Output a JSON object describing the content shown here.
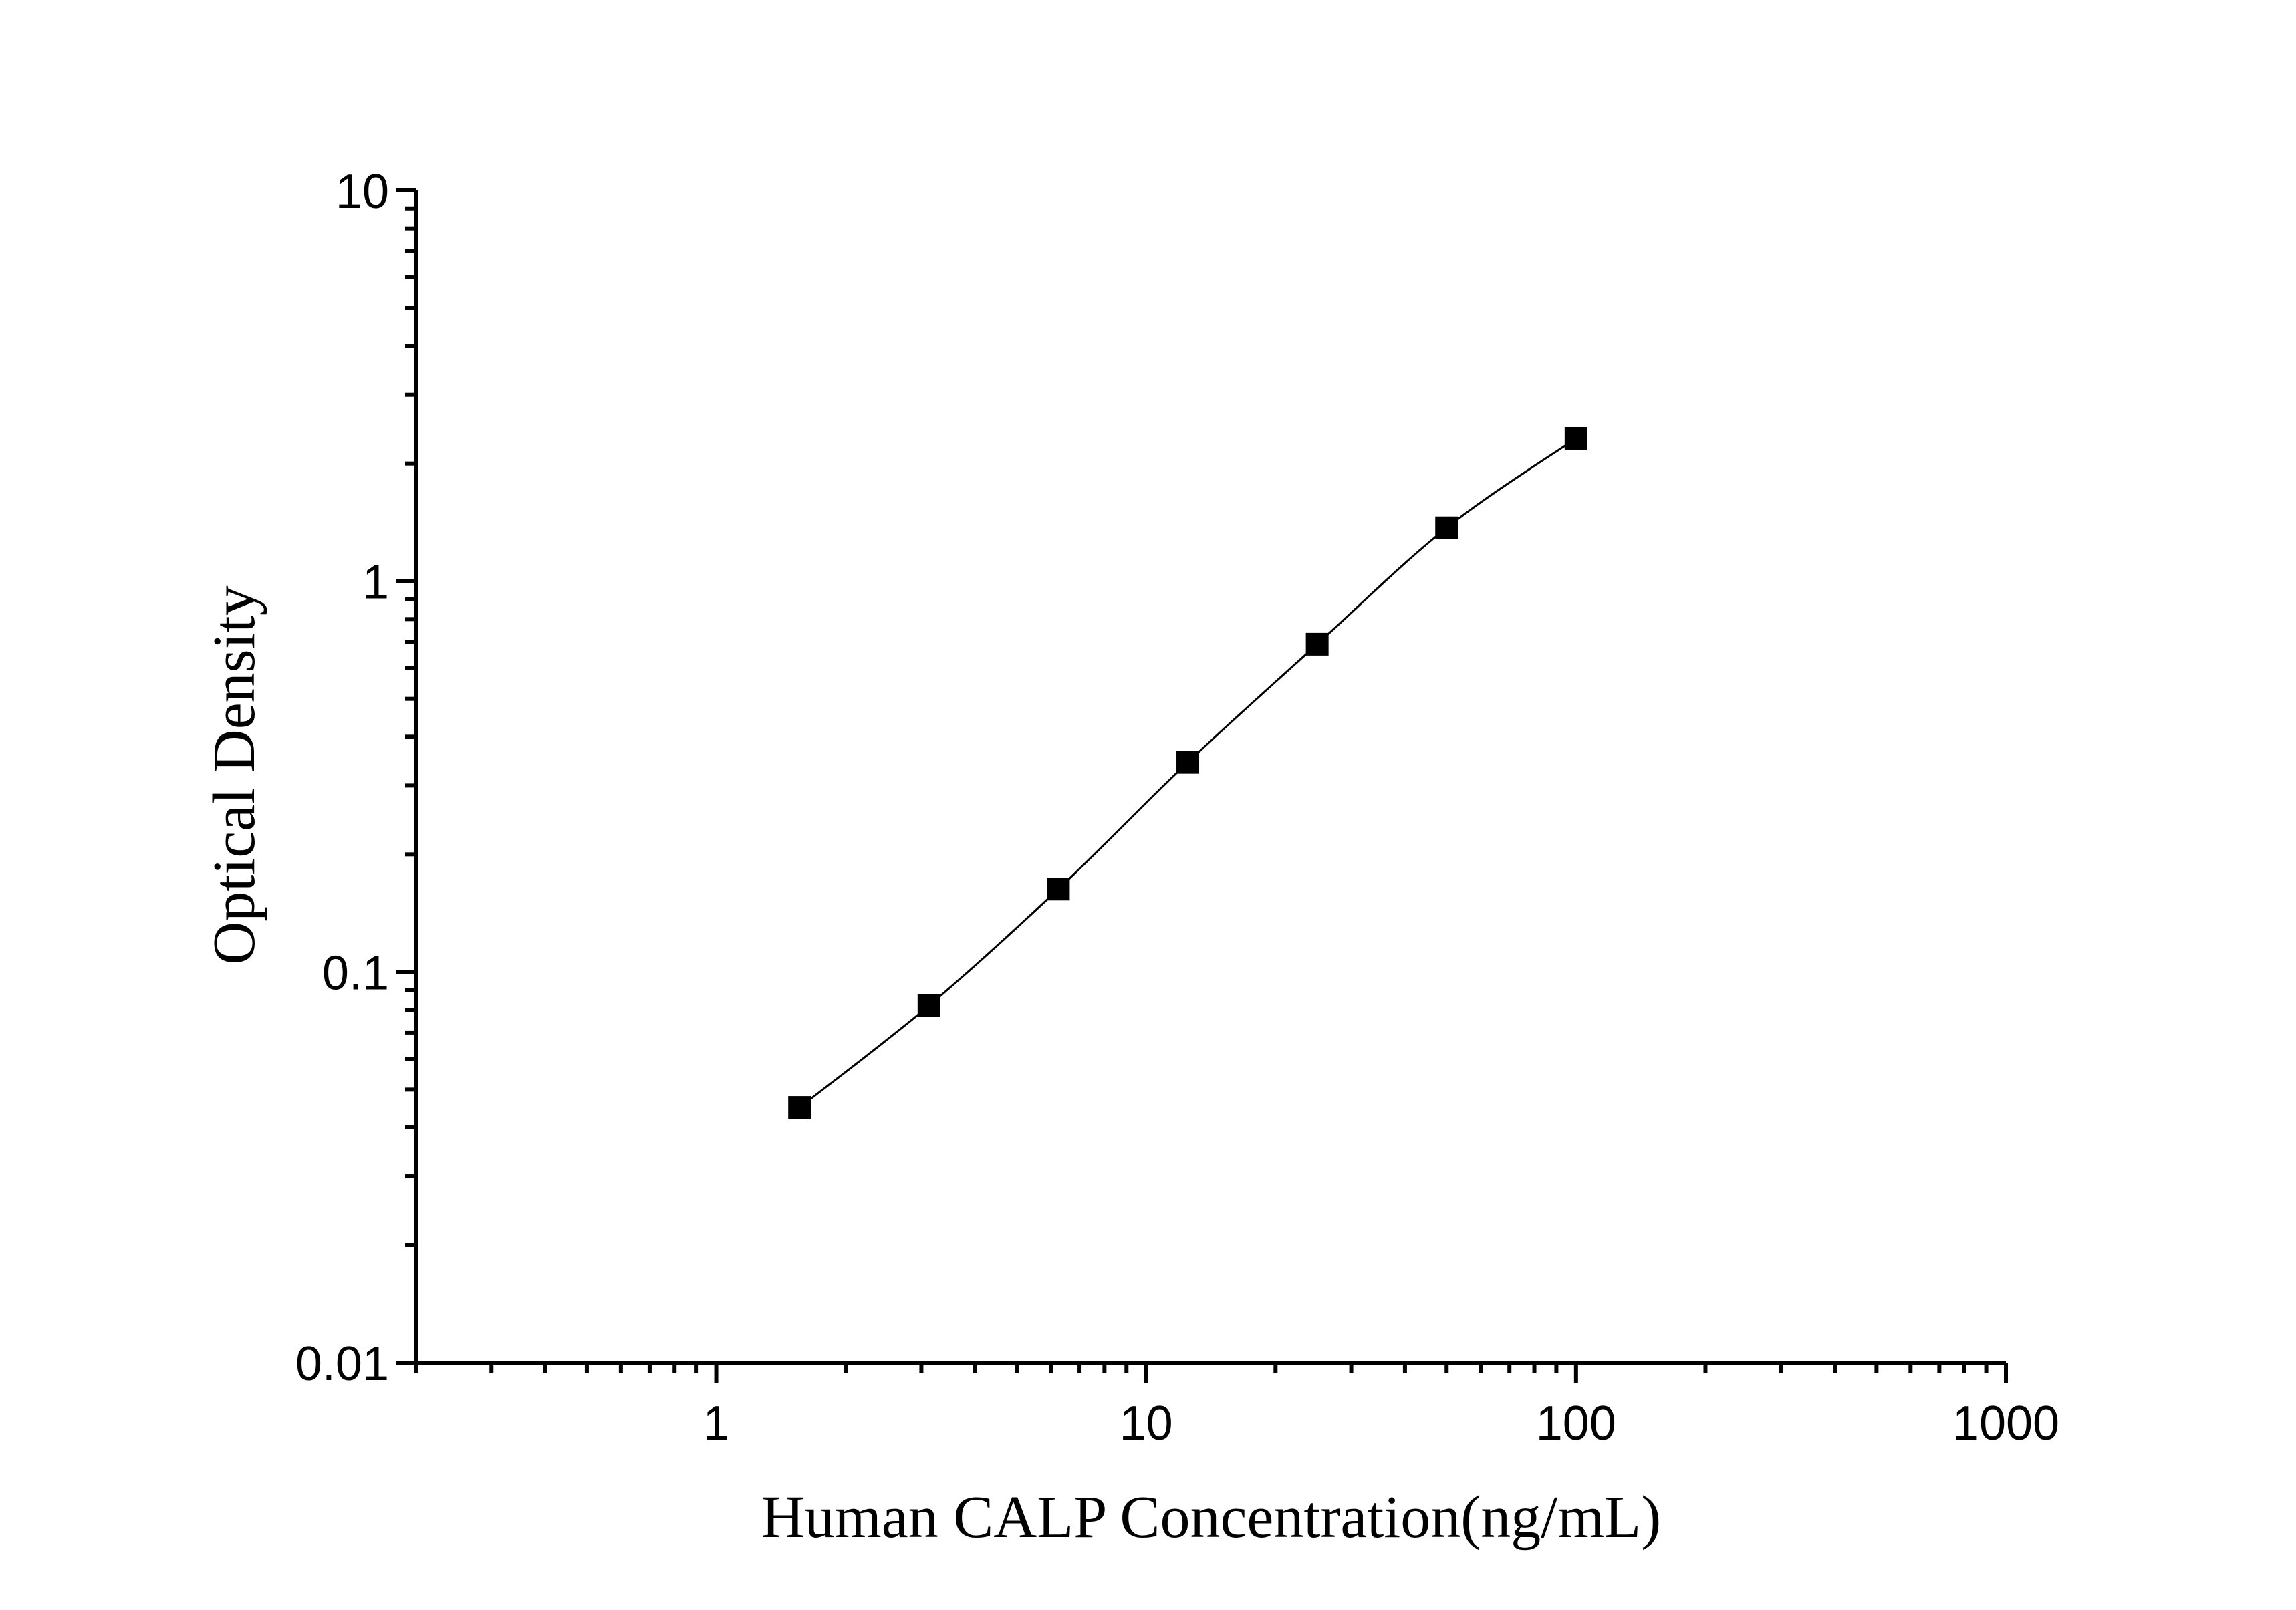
{
  "chart_data": {
    "type": "line",
    "x_label": "Human CALP Concentration(ng/mL)",
    "y_label": "Optical Density",
    "x": [
      1.5625,
      3.125,
      6.25,
      12.5,
      25,
      50,
      100
    ],
    "series": [
      {
        "color": "#000000",
        "values": [
          0.045,
          0.082,
          0.163,
          0.344,
          0.69,
          1.37,
          2.32
        ]
      }
    ],
    "x_log": true,
    "y_log": true,
    "xlim": [
      0.2,
      1000
    ],
    "xticks": [
      1,
      10,
      100,
      1000
    ],
    "ylim": [
      0.01,
      10
    ],
    "yticks": [
      0.01,
      0.1,
      1,
      10
    ],
    "markers": "square",
    "smooth": true
  }
}
